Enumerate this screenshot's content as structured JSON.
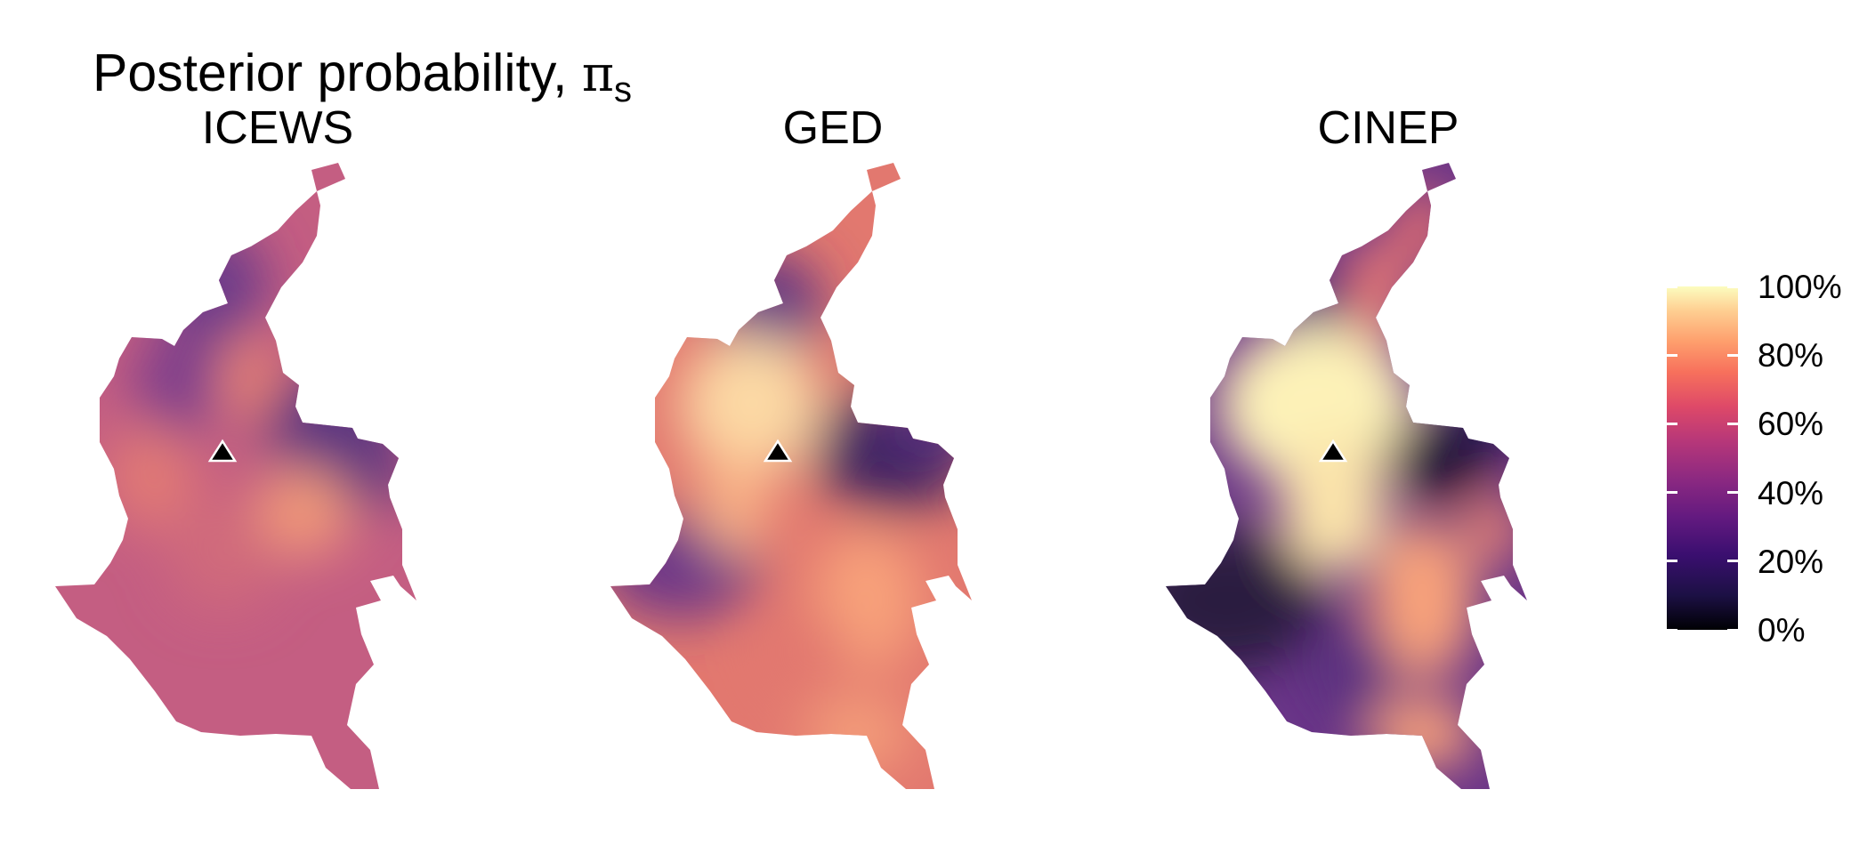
{
  "title": {
    "main": "Posterior probability, ",
    "symbol": "π",
    "subscript": "s"
  },
  "panels": [
    {
      "label": "ICEWS"
    },
    {
      "label": "GED"
    },
    {
      "label": "CINEP"
    }
  ],
  "legend": {
    "labels": [
      "100%",
      "80%",
      "60%",
      "40%",
      "20%",
      "0%"
    ],
    "values": [
      1.0,
      0.8,
      0.6,
      0.4,
      0.2,
      0.0
    ],
    "colormap": "magma",
    "colors": [
      "#000004",
      "#3b0f70",
      "#8c2981",
      "#de4968",
      "#fe9f6d",
      "#fcfdbf"
    ]
  },
  "marker": {
    "shape": "triangle",
    "color": "#000000"
  }
}
